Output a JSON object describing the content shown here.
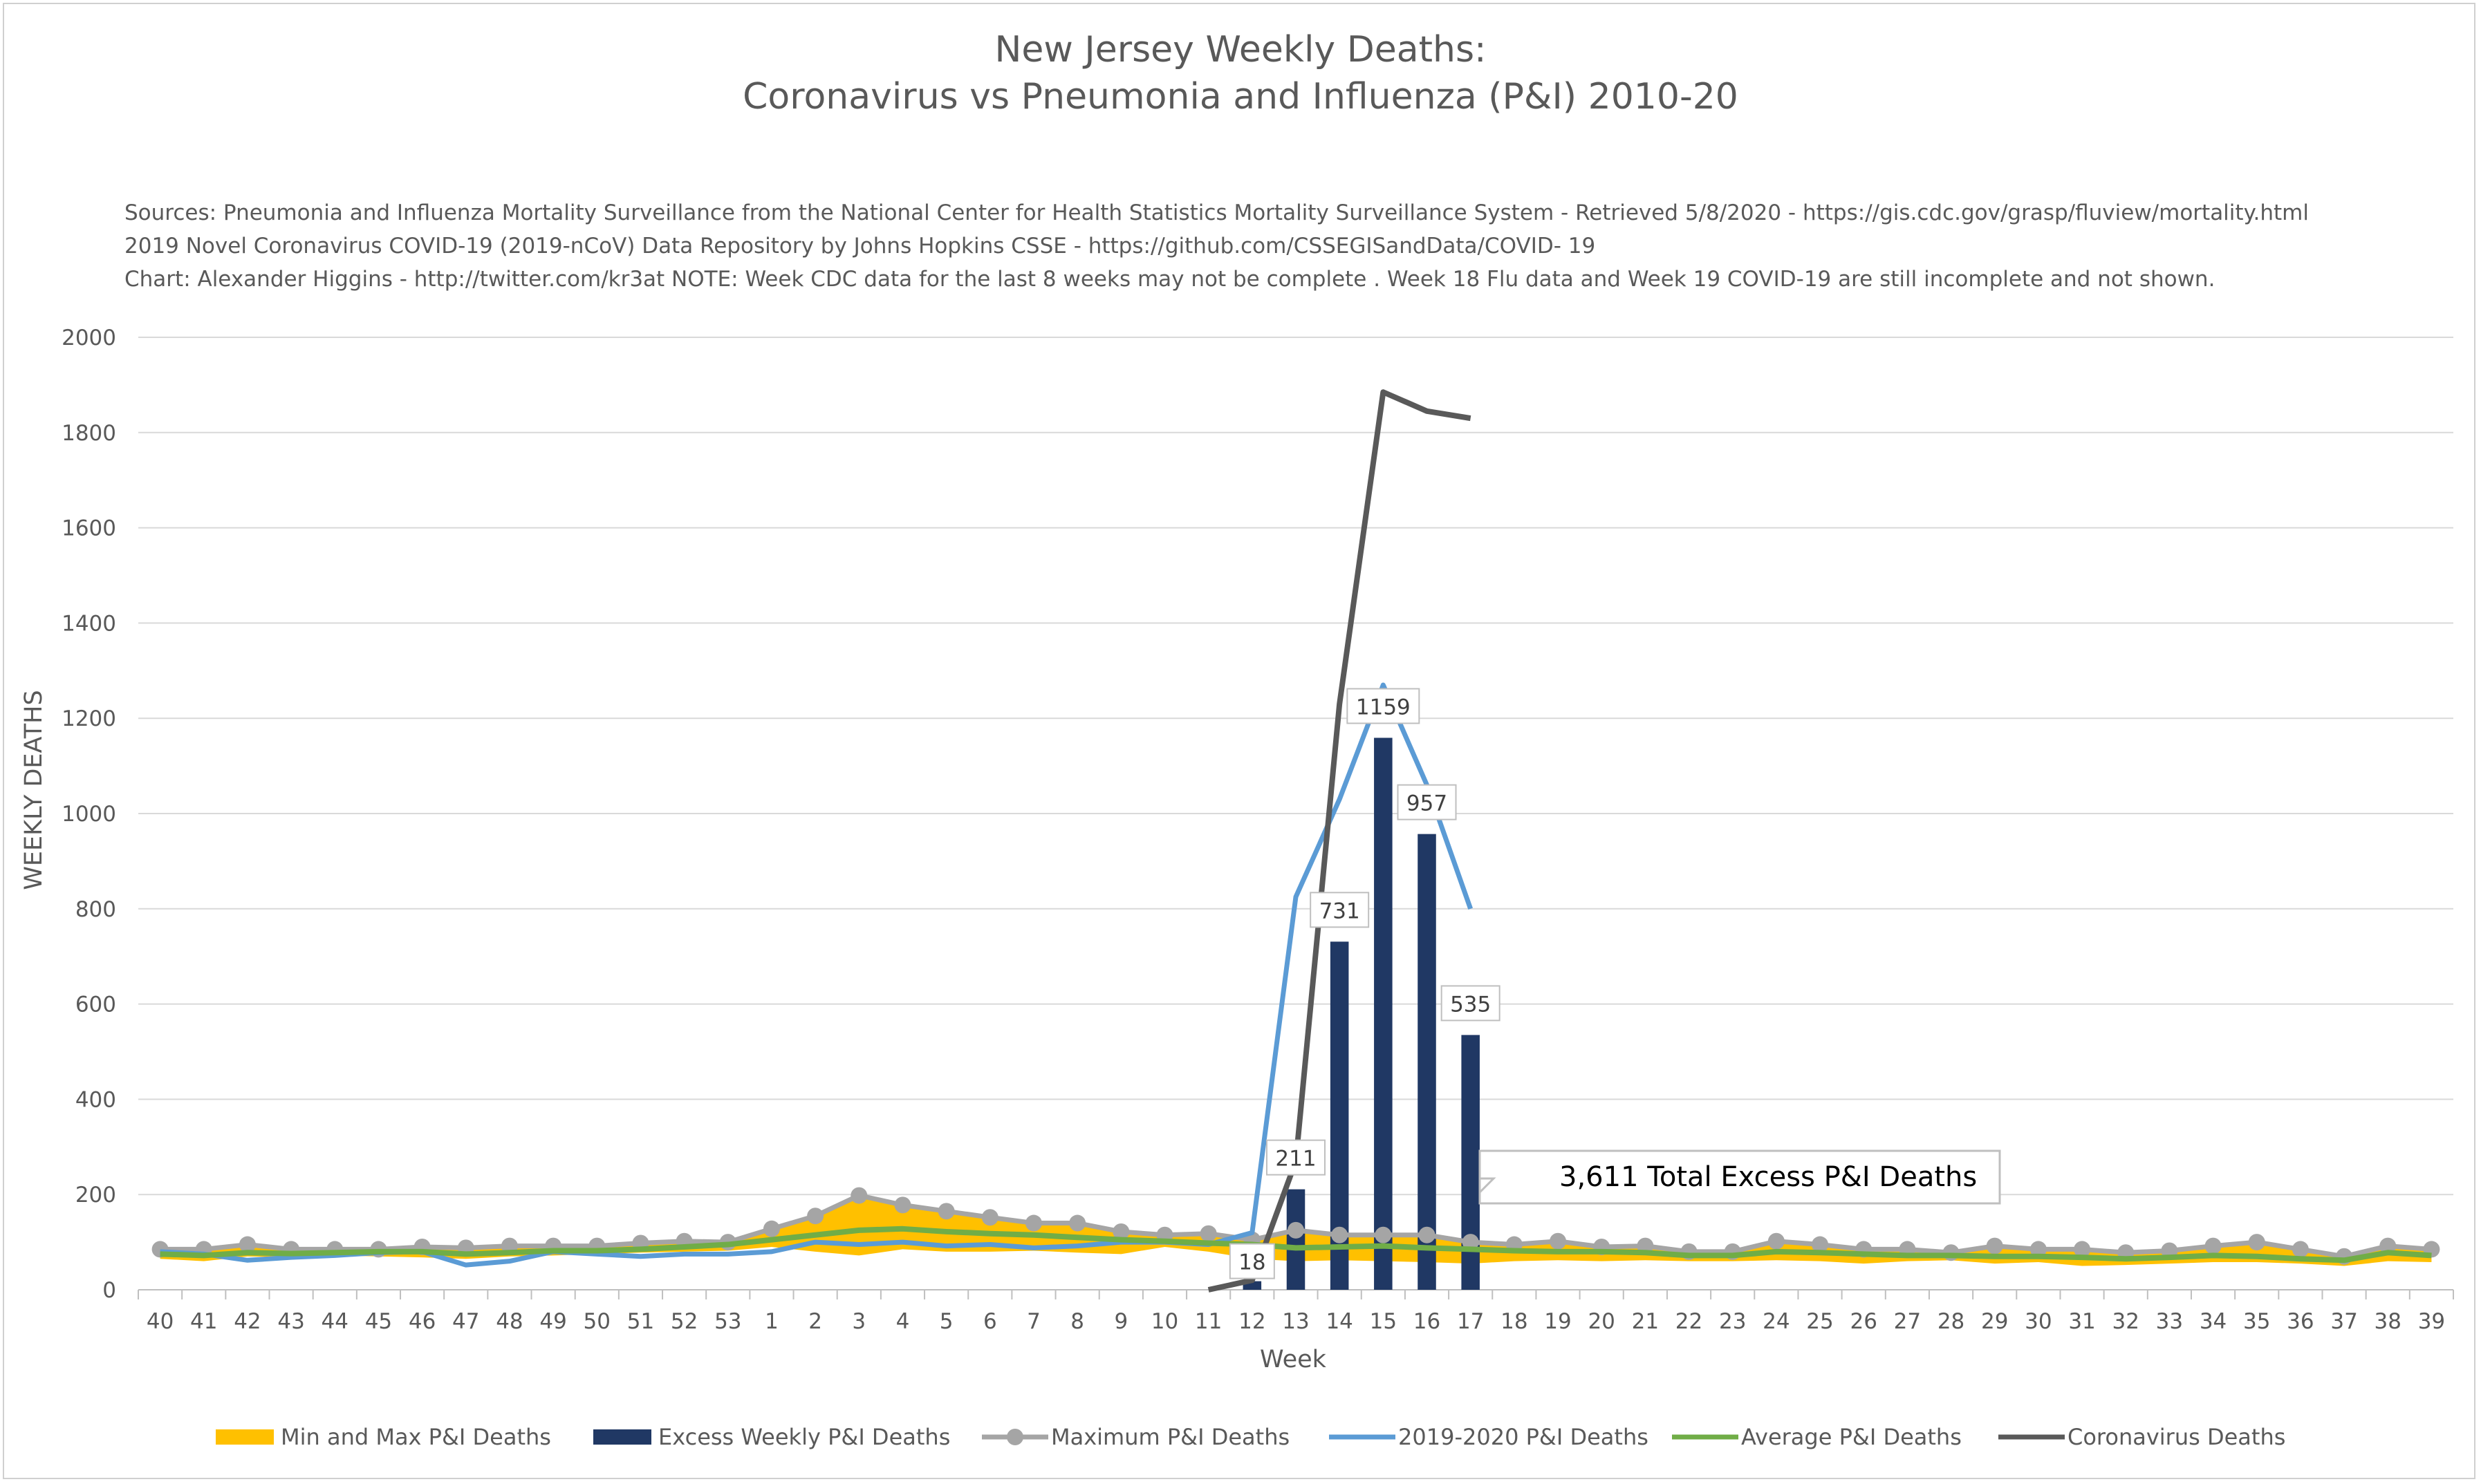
{
  "title_line1": "New Jersey Weekly Deaths:",
  "title_line2": "Coronavirus vs Pneumonia and Influenza (P&I) 2010-20",
  "sources": [
    "Sources: Pneumonia and Influenza Mortality Surveillance from the National Center for Health Statistics Mortality Surveillance System - Retrieved 5/8/2020 - https://gis.cdc.gov/grasp/fluview/mortality.html",
    "2019 Novel Coronavirus COVID-19 (2019-nCoV) Data Repository by Johns Hopkins CSSE - https://github.com/CSSEGISandData/COVID- 19",
    "Chart: Alexander Higgins - http://twitter.com/kr3at   NOTE: Week CDC data for the last 8 weeks may not be complete . Week 18 Flu data and Week 19 COVID-19 are still incomplete and not shown."
  ],
  "colors": {
    "min_max": "#FFC000",
    "excess": "#203864",
    "maximum": "#A5A5A5",
    "current": "#5B9BD5",
    "average": "#70AD47",
    "coronavirus": "#595959",
    "grid": "#d9d9d9"
  },
  "chart_data": {
    "type": "line",
    "title": "New Jersey Weekly Deaths: Coronavirus vs Pneumonia and Influenza (P&I) 2010-20",
    "xlabel": "Week",
    "ylabel": "WEEKLY DEATHS",
    "ylim": [
      0,
      2000
    ],
    "yticks": [
      0,
      200,
      400,
      600,
      800,
      1000,
      1200,
      1400,
      1600,
      1800,
      2000
    ],
    "grid": true,
    "legend_position": "bottom",
    "categories": [
      "40",
      "41",
      "42",
      "43",
      "44",
      "45",
      "46",
      "47",
      "48",
      "49",
      "50",
      "51",
      "52",
      "53",
      "1",
      "2",
      "3",
      "4",
      "5",
      "6",
      "7",
      "8",
      "9",
      "10",
      "11",
      "12",
      "13",
      "14",
      "15",
      "16",
      "17",
      "18",
      "19",
      "20",
      "21",
      "22",
      "23",
      "24",
      "25",
      "26",
      "27",
      "28",
      "29",
      "30",
      "31",
      "32",
      "33",
      "34",
      "35",
      "36",
      "37",
      "38",
      "39"
    ],
    "series": [
      {
        "name": "Min and Max P&I Deaths",
        "type": "band",
        "lower": [
          65,
          60,
          70,
          68,
          72,
          70,
          68,
          65,
          70,
          72,
          75,
          78,
          80,
          82,
          90,
          80,
          72,
          85,
          80,
          80,
          82,
          78,
          75,
          90,
          80,
          65,
          60,
          62,
          60,
          58,
          55,
          60,
          62,
          60,
          62,
          60,
          60,
          62,
          60,
          55,
          60,
          62,
          55,
          58,
          50,
          52,
          55,
          58,
          58,
          55,
          50,
          60,
          58
        ],
        "upper": [
          85,
          85,
          95,
          85,
          85,
          85,
          90,
          88,
          92,
          92,
          92,
          98,
          102,
          100,
          128,
          155,
          198,
          178,
          165,
          152,
          140,
          140,
          122,
          115,
          118,
          105,
          125,
          115,
          115,
          115,
          100,
          95,
          102,
          90,
          92,
          80,
          80,
          102,
          95,
          85,
          85,
          78,
          92,
          85,
          85,
          78,
          82,
          92,
          100,
          85,
          70,
          92,
          85
        ]
      },
      {
        "name": "Excess Weekly P&I Deaths",
        "type": "bar",
        "points": [
          {
            "x": "12",
            "y": 18
          },
          {
            "x": "13",
            "y": 211
          },
          {
            "x": "14",
            "y": 731
          },
          {
            "x": "15",
            "y": 1159
          },
          {
            "x": "16",
            "y": 957
          },
          {
            "x": "17",
            "y": 535
          }
        ]
      },
      {
        "name": "Maximum P&I Deaths",
        "type": "line-markers",
        "values": [
          85,
          85,
          95,
          85,
          85,
          85,
          90,
          88,
          92,
          92,
          92,
          98,
          102,
          100,
          128,
          155,
          198,
          178,
          165,
          152,
          140,
          140,
          122,
          115,
          118,
          105,
          125,
          115,
          115,
          115,
          100,
          95,
          102,
          90,
          92,
          80,
          80,
          102,
          95,
          85,
          85,
          78,
          92,
          85,
          85,
          78,
          82,
          92,
          100,
          85,
          70,
          92,
          85
        ]
      },
      {
        "name": "2019-2020 P&I Deaths",
        "type": "line",
        "values": [
          80,
          75,
          62,
          68,
          72,
          78,
          80,
          52,
          60,
          80,
          75,
          70,
          75,
          75,
          80,
          100,
          95,
          100,
          92,
          95,
          88,
          92,
          100,
          100,
          95,
          120,
          825,
          1030,
          1270,
          1060,
          800,
          null,
          null,
          null,
          null,
          null,
          null,
          null,
          null,
          null,
          null,
          null,
          null,
          null,
          null,
          null,
          null,
          null,
          null,
          null,
          null,
          null,
          null
        ]
      },
      {
        "name": "Average P&I Deaths",
        "type": "line",
        "values": [
          75,
          72,
          78,
          76,
          78,
          80,
          80,
          75,
          78,
          82,
          82,
          85,
          90,
          95,
          105,
          115,
          125,
          128,
          122,
          118,
          115,
          110,
          105,
          102,
          98,
          95,
          88,
          90,
          92,
          88,
          85,
          82,
          80,
          80,
          78,
          72,
          72,
          80,
          78,
          75,
          72,
          72,
          70,
          70,
          68,
          65,
          68,
          72,
          70,
          65,
          62,
          78,
          72
        ]
      },
      {
        "name": "Coronavirus Deaths",
        "type": "line",
        "values": [
          null,
          null,
          null,
          null,
          null,
          null,
          null,
          null,
          null,
          null,
          null,
          null,
          null,
          null,
          null,
          null,
          null,
          null,
          null,
          null,
          null,
          null,
          null,
          null,
          0,
          20,
          270,
          1230,
          1885,
          1845,
          1830,
          null,
          null,
          null,
          null,
          null,
          null,
          null,
          null,
          null,
          null,
          null,
          null,
          null,
          null,
          null,
          null,
          null,
          null,
          null,
          null,
          null,
          null
        ]
      }
    ],
    "annotation": "3,611 Total Excess P&I Deaths"
  }
}
